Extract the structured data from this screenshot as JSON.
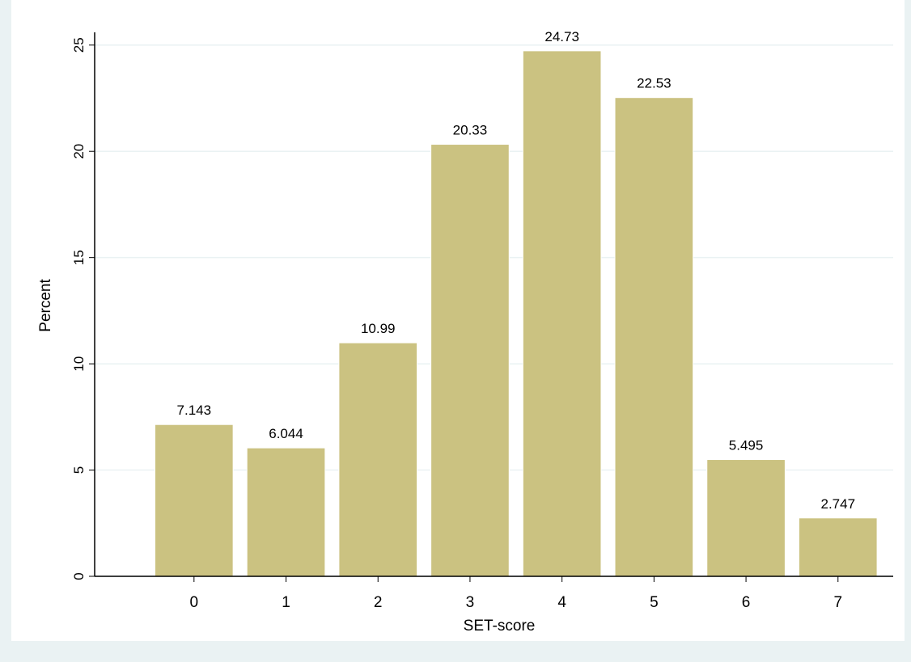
{
  "chart_data": {
    "type": "bar",
    "x": [
      0,
      1,
      2,
      3,
      4,
      5,
      6,
      7
    ],
    "values": [
      7.143,
      6.044,
      10.99,
      20.33,
      24.73,
      22.53,
      5.495,
      2.747
    ],
    "color": "#cbc281",
    "xlabel": "SET-score",
    "ylabel": "Percent",
    "xlim": [
      -1.08,
      7.6
    ],
    "xticks": [
      0,
      1,
      2,
      3,
      4,
      5,
      6,
      7
    ],
    "ylim": [
      0,
      25.6
    ],
    "yticks": [
      0,
      5,
      10,
      15,
      20,
      25
    ],
    "grid": true
  }
}
